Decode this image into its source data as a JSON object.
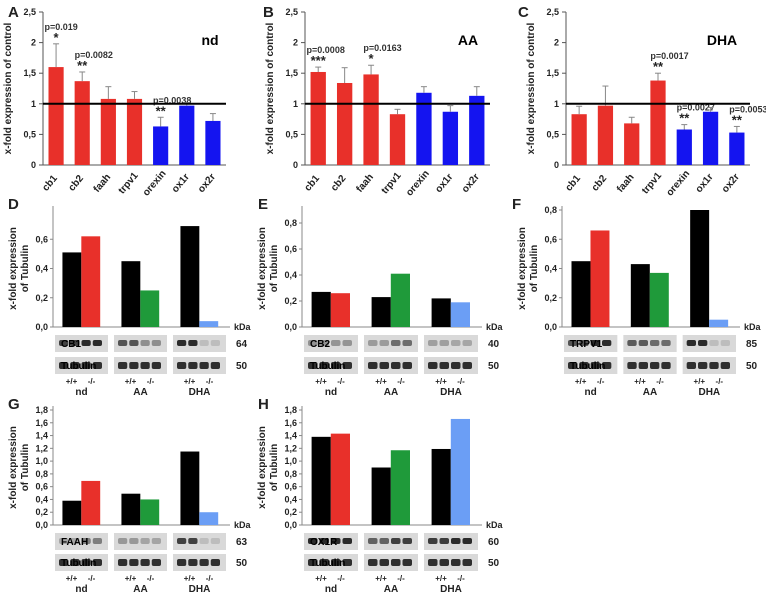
{
  "colors": {
    "red": "#e8302a",
    "blue": "#1414f0",
    "black": "#000000",
    "green": "#1f9a3a",
    "lightblue": "#6b9ef5",
    "errorbar": "#888888"
  },
  "chart_data": [
    {
      "panel": "A",
      "type": "bar",
      "title": "nd",
      "ylabel": "x-fold expression of control",
      "yticks": [
        "0",
        "0,5",
        "1",
        "1,5",
        "2",
        "2,5"
      ],
      "ylim": [
        0,
        2.5
      ],
      "reference_line": 1,
      "categories": [
        "cb1",
        "cb2",
        "faah",
        "trpv1",
        "orexin",
        "ox1r",
        "ox2r"
      ],
      "values": [
        1.6,
        1.37,
        1.08,
        1.08,
        0.63,
        0.97,
        0.72
      ],
      "errors": [
        0.38,
        0.15,
        0.2,
        0.12,
        0.15,
        0.05,
        0.12
      ],
      "bar_colors": [
        "red",
        "red",
        "red",
        "red",
        "blue",
        "blue",
        "blue"
      ],
      "stars": [
        "*",
        "**",
        "",
        "",
        "**",
        "",
        ""
      ],
      "pvalues": [
        "p=0.019",
        "p=0.0082",
        "",
        "",
        "p=0.0038",
        "",
        ""
      ]
    },
    {
      "panel": "B",
      "type": "bar",
      "title": "AA",
      "ylabel": "x-fold expression of control",
      "yticks": [
        "0",
        "0,5",
        "1",
        "1,5",
        "2",
        "2,5"
      ],
      "ylim": [
        0,
        2.5
      ],
      "reference_line": 1,
      "categories": [
        "cb1",
        "cb2",
        "faah",
        "trpv1",
        "orexin",
        "ox1r",
        "ox2r"
      ],
      "values": [
        1.52,
        1.34,
        1.48,
        0.83,
        1.18,
        0.87,
        1.13
      ],
      "errors": [
        0.08,
        0.25,
        0.15,
        0.08,
        0.1,
        0.1,
        0.15
      ],
      "bar_colors": [
        "red",
        "red",
        "red",
        "red",
        "blue",
        "blue",
        "blue"
      ],
      "stars": [
        "***",
        "",
        "*",
        "",
        "",
        "",
        ""
      ],
      "pvalues": [
        "p=0.0008",
        "",
        "p=0.0163",
        "",
        "",
        "",
        ""
      ]
    },
    {
      "panel": "C",
      "type": "bar",
      "title": "DHA",
      "ylabel": "x-fold expression of control",
      "yticks": [
        "0",
        "0,5",
        "1",
        "1,5",
        "2",
        "2,5"
      ],
      "ylim": [
        0,
        2.5
      ],
      "reference_line": 1,
      "categories": [
        "cb1",
        "cb2",
        "faah",
        "trpv1",
        "orexin",
        "ox1r",
        "ox2r"
      ],
      "values": [
        0.83,
        0.97,
        0.68,
        1.38,
        0.58,
        0.87,
        0.53
      ],
      "errors": [
        0.13,
        0.32,
        0.1,
        0.12,
        0.08,
        0.07,
        0.1
      ],
      "bar_colors": [
        "red",
        "red",
        "red",
        "red",
        "blue",
        "blue",
        "blue"
      ],
      "stars": [
        "",
        "",
        "",
        "**",
        "**",
        "",
        "**"
      ],
      "pvalues": [
        "",
        "",
        "",
        "p=0.0017",
        "p=0.0027",
        "",
        "p=0.0053"
      ]
    },
    {
      "panel": "D",
      "type": "bar",
      "protein": "CB1",
      "ylabel": "x-fold expression of Tubulin",
      "yticks": [
        "0,0",
        "0,2",
        "0,4",
        "0,6"
      ],
      "ylim": [
        0,
        0.8
      ],
      "groups": [
        "nd",
        "AA",
        "DHA"
      ],
      "genotypes": [
        "+/+",
        "-/-"
      ],
      "values": [
        [
          0.51,
          0.62
        ],
        [
          0.45,
          0.25
        ],
        [
          0.69,
          0.04
        ]
      ],
      "bar_colors": [
        [
          "black",
          "red"
        ],
        [
          "black",
          "green"
        ],
        [
          "black",
          "lightblue"
        ]
      ],
      "band_kda": "64",
      "loading": "Tubulin",
      "loading_kda": "50",
      "kda_label": "kDa"
    },
    {
      "panel": "E",
      "type": "bar",
      "protein": "CB2",
      "ylabel": "x-fold expression of Tubulin",
      "yticks": [
        "0,0",
        "0,2",
        "0,4",
        "0,6",
        "0,8"
      ],
      "ylim": [
        0,
        0.9
      ],
      "groups": [
        "nd",
        "AA",
        "DHA"
      ],
      "genotypes": [
        "+/+",
        "-/-"
      ],
      "values": [
        [
          0.27,
          0.26
        ],
        [
          0.23,
          0.41
        ],
        [
          0.22,
          0.19
        ]
      ],
      "bar_colors": [
        [
          "black",
          "red"
        ],
        [
          "black",
          "green"
        ],
        [
          "black",
          "lightblue"
        ]
      ],
      "band_kda": "40",
      "loading": "Tubulin",
      "loading_kda": "50",
      "kda_label": "kDa"
    },
    {
      "panel": "F",
      "type": "bar",
      "protein": "TRPV1",
      "ylabel": "x-fold expression of Tubulin",
      "yticks": [
        "0,0",
        "0,2",
        "0,4",
        "0,6",
        "0,8"
      ],
      "ylim": [
        0,
        0.8
      ],
      "groups": [
        "nd",
        "AA",
        "DHA"
      ],
      "genotypes": [
        "+/+",
        "-/-"
      ],
      "values": [
        [
          0.45,
          0.66
        ],
        [
          0.43,
          0.37
        ],
        [
          0.8,
          0.05
        ]
      ],
      "bar_colors": [
        [
          "black",
          "red"
        ],
        [
          "black",
          "green"
        ],
        [
          "black",
          "lightblue"
        ]
      ],
      "band_kda": "85",
      "loading": "Tubulin",
      "loading_kda": "50",
      "kda_label": "kDa"
    },
    {
      "panel": "G",
      "type": "bar",
      "protein": "FAAH",
      "ylabel": "x-fold expression of Tubulin",
      "yticks": [
        "0,0",
        "0,2",
        "0,4",
        "0,6",
        "0,8",
        "1,0",
        "1,2",
        "1,4",
        "1,6",
        "1,8"
      ],
      "ylim": [
        0,
        1.8
      ],
      "groups": [
        "nd",
        "AA",
        "DHA"
      ],
      "genotypes": [
        "+/+",
        "-/-"
      ],
      "values": [
        [
          0.38,
          0.69
        ],
        [
          0.49,
          0.4
        ],
        [
          1.15,
          0.2
        ]
      ],
      "bar_colors": [
        [
          "black",
          "red"
        ],
        [
          "black",
          "green"
        ],
        [
          "black",
          "lightblue"
        ]
      ],
      "band_kda": "63",
      "loading": "Tubulin",
      "loading_kda": "50",
      "kda_label": "kDa"
    },
    {
      "panel": "H",
      "type": "bar",
      "protein": "OX1R",
      "ylabel": "x-fold expression of Tubulin",
      "yticks": [
        "0,0",
        "0,2",
        "0,4",
        "0,6",
        "0,8",
        "1,0",
        "1,2",
        "1,4",
        "1,6",
        "1,8"
      ],
      "ylim": [
        0,
        1.8
      ],
      "groups": [
        "nd",
        "AA",
        "DHA"
      ],
      "genotypes": [
        "+/+",
        "-/-"
      ],
      "values": [
        [
          1.38,
          1.43
        ],
        [
          0.9,
          1.17
        ],
        [
          1.19,
          1.66
        ]
      ],
      "bar_colors": [
        [
          "black",
          "red"
        ],
        [
          "black",
          "green"
        ],
        [
          "black",
          "lightblue"
        ]
      ],
      "band_kda": "60",
      "loading": "Tubulin",
      "loading_kda": "50",
      "kda_label": "kDa"
    }
  ]
}
